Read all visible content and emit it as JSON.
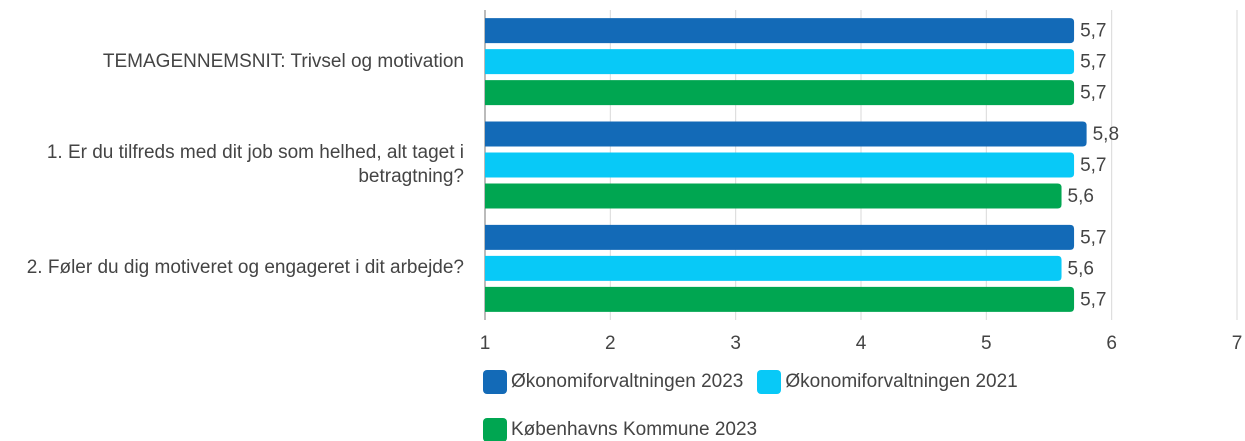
{
  "chart_data": {
    "type": "barh",
    "categories": [
      "TEMAGENNEMSNIT: Trivsel og motivation",
      "1. Er du tilfreds med dit job som helhed, alt taget i betragtning?",
      "2. Føler du dig motiveret og engageret i dit arbejde?"
    ],
    "series": [
      {
        "name": "Økonomiforvaltningen 2023",
        "color": "#136ab7",
        "values": [
          5.7,
          5.8,
          5.7
        ],
        "value_labels": [
          "5,7",
          "5,8",
          "5,7"
        ]
      },
      {
        "name": "Økonomiforvaltningen 2021",
        "color": "#08c9f7",
        "values": [
          5.7,
          5.7,
          5.6
        ],
        "value_labels": [
          "5,7",
          "5,7",
          "5,6"
        ]
      },
      {
        "name": "Københavns Kommune 2023",
        "color": "#00a651",
        "values": [
          5.7,
          5.6,
          5.7
        ],
        "value_labels": [
          "5,7",
          "5,6",
          "5,7"
        ]
      }
    ],
    "xlim": [
      1,
      7
    ],
    "xticks": [
      1,
      2,
      3,
      4,
      5,
      6,
      7
    ],
    "grid": true
  }
}
